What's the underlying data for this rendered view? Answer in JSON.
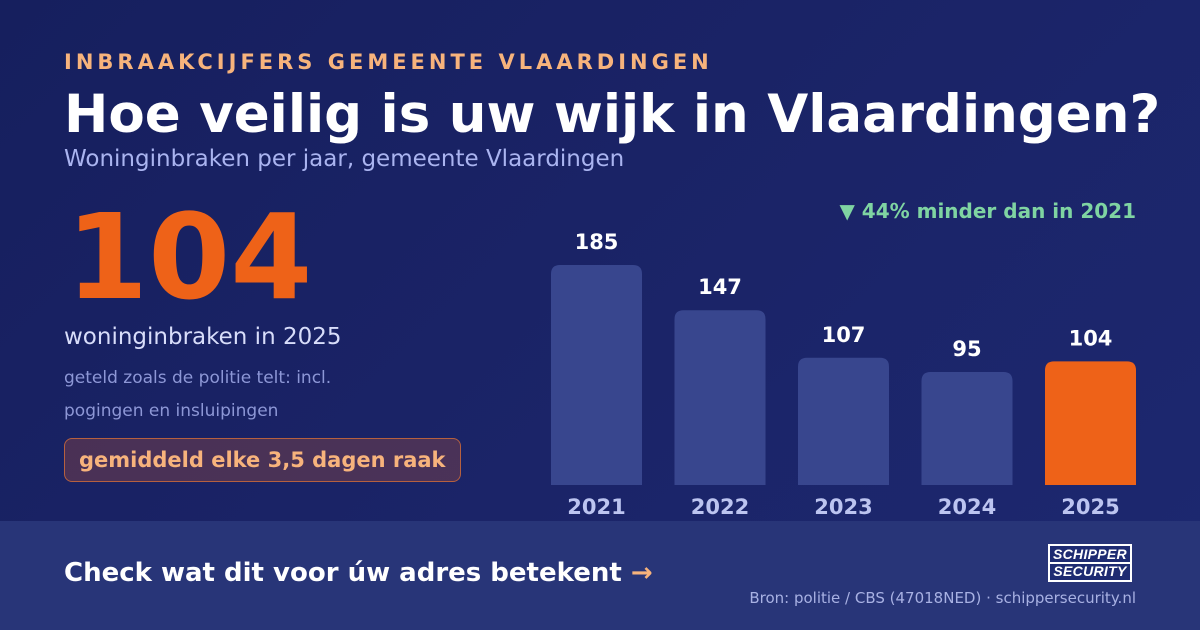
{
  "header": {
    "eyebrow": "INBRAAKCIJFERS GEMEENTE VLAARDINGEN",
    "title": "Hoe veilig is uw wijk in Vlaardingen?",
    "subtitle": "Woninginbraken per jaar, gemeente Vlaardingen"
  },
  "highlight": {
    "value": "104",
    "caption": "woninginbraken in 2025",
    "note": "geteld zoals de politie telt: incl. pogingen en insluipingen",
    "frequency": "gemiddeld elke 3,5 dagen raak"
  },
  "delta": "▼ 44% minder dan in 2021",
  "chart_data": {
    "type": "bar",
    "categories": [
      "2021",
      "2022",
      "2023",
      "2024",
      "2025"
    ],
    "values": [
      185,
      147,
      107,
      95,
      104
    ],
    "highlight_index": 4,
    "ylim": [
      0,
      185
    ],
    "grid": false,
    "colors": {
      "bar": "#38468e",
      "highlight": "#ee6218",
      "label": "#ffffff",
      "tick": "#bcc4f0"
    }
  },
  "footer": {
    "cta": "Check wat dit voor úw adres betekent",
    "cta_arrow": "→",
    "logo_line1": "SCHIPPER",
    "logo_line2": "SECURITY",
    "source": "Bron: politie / CBS (47018NED) · schippersecurity.nl"
  }
}
